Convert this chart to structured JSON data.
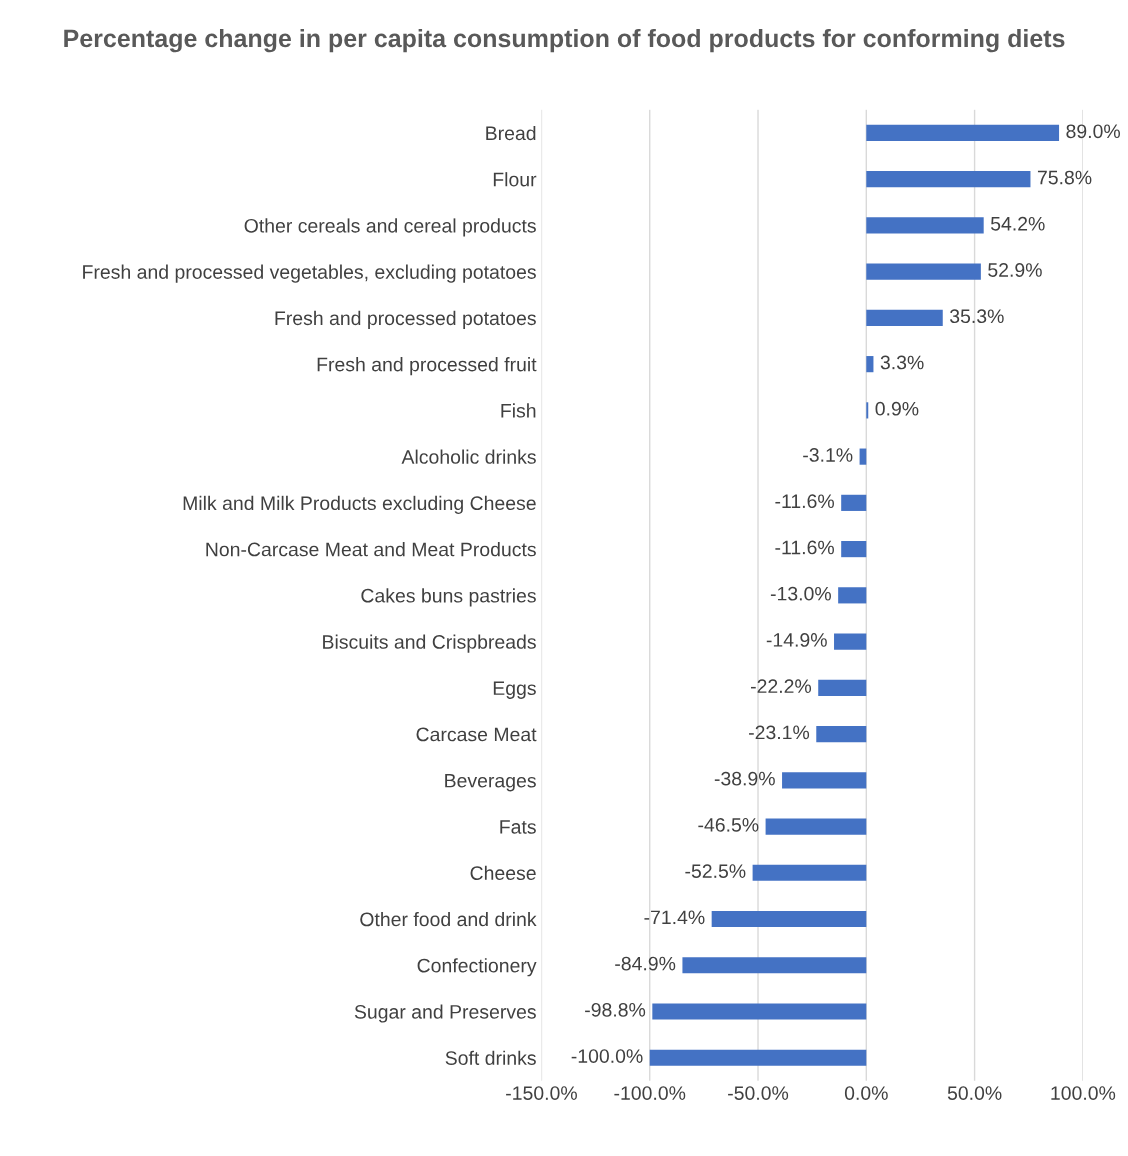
{
  "chart_data": {
    "type": "bar",
    "orientation": "horizontal",
    "title": "Percentage change in per capita consumption of food products for conforming diets",
    "categories": [
      "Bread",
      "Flour",
      "Other cereals and cereal products",
      "Fresh and processed vegetables, excluding potatoes",
      "Fresh and processed potatoes",
      "Fresh and processed fruit",
      "Fish",
      "Alcoholic drinks",
      "Milk and Milk Products excluding Cheese",
      "Non-Carcase Meat and Meat Products",
      "Cakes buns pastries",
      "Biscuits and Crispbreads",
      "Eggs",
      "Carcase Meat",
      "Beverages",
      "Fats",
      "Cheese",
      "Other food and drink",
      "Confectionery",
      "Sugar and Preserves",
      "Soft drinks"
    ],
    "values": [
      89.0,
      75.8,
      54.2,
      52.9,
      35.3,
      3.3,
      0.9,
      -3.1,
      -11.6,
      -11.6,
      -13.0,
      -14.9,
      -22.2,
      -23.1,
      -38.9,
      -46.5,
      -52.5,
      -71.4,
      -84.9,
      -98.8,
      -100.0
    ],
    "value_labels": [
      "89.0%",
      "75.8%",
      "54.2%",
      "52.9%",
      "35.3%",
      "3.3%",
      "0.9%",
      "-3.1%",
      "-11.6%",
      "-11.6%",
      "-13.0%",
      "-14.9%",
      "-22.2%",
      "-23.1%",
      "-38.9%",
      "-46.5%",
      "-52.5%",
      "-71.4%",
      "-84.9%",
      "-98.8%",
      "-100.0%"
    ],
    "color": "#4472c4",
    "xlim": [
      -150,
      100
    ],
    "xticks": [
      {
        "value": -150,
        "label": "-150.0%"
      },
      {
        "value": -100,
        "label": "-100.0%"
      },
      {
        "value": -50,
        "label": "-50.0%"
      },
      {
        "value": 0,
        "label": "0.0%"
      },
      {
        "value": 50,
        "label": "50.0%"
      },
      {
        "value": 100,
        "label": "100.0%"
      }
    ],
    "grid": "x",
    "legend": false
  }
}
